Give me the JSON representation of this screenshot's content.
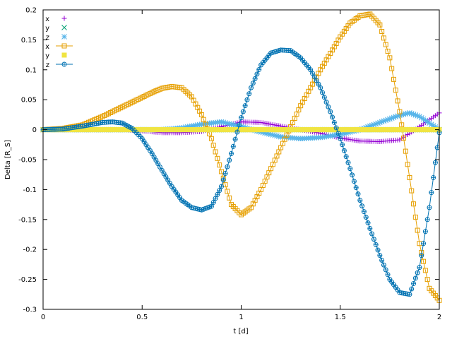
{
  "chart_data": {
    "type": "line",
    "xlabel": "t [d]",
    "ylabel": "Delta [R_S]",
    "xlim": [
      0,
      2
    ],
    "ylim": [
      -0.3,
      0.2
    ],
    "xticks": [
      "0",
      "0.5",
      "1",
      "1.5",
      "2"
    ],
    "yticks": [
      "0.2",
      "0.15",
      "0.1",
      "0.05",
      "0",
      "-0.05",
      "-0.1",
      "-0.15",
      "-0.2",
      "-0.25",
      "-0.3"
    ],
    "grid": false,
    "legend": "top-left",
    "series": [
      {
        "name": "x",
        "color": "#9400d3",
        "marker": "plus",
        "lines": false,
        "x": [
          0,
          0.1,
          0.2,
          0.3,
          0.4,
          0.5,
          0.6,
          0.7,
          0.8,
          0.9,
          1.0,
          1.1,
          1.2,
          1.3,
          1.4,
          1.5,
          1.6,
          1.7,
          1.8,
          1.9,
          2.0
        ],
        "y": [
          0,
          0,
          0,
          0,
          0,
          -0.002,
          -0.005,
          -0.005,
          -0.003,
          0.005,
          0.013,
          0.012,
          0.006,
          0,
          -0.006,
          -0.014,
          -0.019,
          -0.02,
          -0.017,
          0.005,
          0.028
        ]
      },
      {
        "name": "y",
        "color": "#009e73",
        "marker": "cross",
        "lines": false,
        "x": [
          0,
          0.5,
          1.0,
          1.5,
          2.0
        ],
        "y": [
          0,
          0,
          0,
          0,
          0
        ]
      },
      {
        "name": "z",
        "color": "#56b4e9",
        "marker": "star",
        "lines": false,
        "x": [
          0,
          0.1,
          0.2,
          0.3,
          0.4,
          0.5,
          0.6,
          0.7,
          0.8,
          0.9,
          1.0,
          1.1,
          1.2,
          1.3,
          1.4,
          1.5,
          1.6,
          1.7,
          1.8,
          1.85,
          1.9,
          2.0
        ],
        "y": [
          0,
          0,
          0,
          0,
          0,
          0,
          0,
          0.003,
          0.009,
          0.013,
          0.005,
          -0.004,
          -0.012,
          -0.015,
          -0.013,
          -0.008,
          0,
          0.012,
          0.024,
          0.028,
          0.022,
          0
        ]
      },
      {
        "name": "x",
        "color": "#e69f00",
        "marker": "box",
        "lines": true,
        "x": [
          0,
          0.1,
          0.2,
          0.3,
          0.4,
          0.5,
          0.55,
          0.6,
          0.65,
          0.7,
          0.75,
          0.8,
          0.85,
          0.9,
          0.95,
          1.0,
          1.05,
          1.1,
          1.15,
          1.2,
          1.3,
          1.4,
          1.5,
          1.55,
          1.6,
          1.65,
          1.7,
          1.75,
          1.8,
          1.85,
          1.9,
          1.95,
          2.0
        ],
        "y": [
          0,
          0.002,
          0.008,
          0.022,
          0.038,
          0.054,
          0.062,
          0.069,
          0.072,
          0.07,
          0.055,
          0.025,
          -0.015,
          -0.07,
          -0.125,
          -0.142,
          -0.13,
          -0.1,
          -0.065,
          -0.03,
          0.04,
          0.1,
          0.155,
          0.178,
          0.19,
          0.193,
          0.175,
          0.12,
          0.03,
          -0.08,
          -0.19,
          -0.265,
          -0.285
        ]
      },
      {
        "name": "y",
        "color": "#f0e442",
        "marker": "boxfilled",
        "lines": false,
        "x": [
          0,
          0.1,
          0.2,
          0.3,
          0.4,
          0.5,
          0.6,
          0.7,
          0.8,
          0.9,
          1.0,
          1.1,
          1.2,
          1.3,
          1.4,
          1.5,
          1.6,
          1.7,
          1.8,
          1.9,
          2.0
        ],
        "y": [
          0,
          0,
          0,
          0,
          0,
          0,
          0,
          0,
          0,
          0,
          0,
          0,
          0,
          0,
          0,
          0,
          0,
          0,
          0,
          0,
          0
        ]
      },
      {
        "name": "z",
        "color": "#0072b2",
        "marker": "circleplus",
        "lines": true,
        "x": [
          0,
          0.1,
          0.2,
          0.3,
          0.35,
          0.4,
          0.45,
          0.5,
          0.55,
          0.6,
          0.65,
          0.7,
          0.75,
          0.8,
          0.85,
          0.9,
          0.95,
          1.0,
          1.05,
          1.1,
          1.15,
          1.2,
          1.25,
          1.3,
          1.35,
          1.4,
          1.45,
          1.5,
          1.55,
          1.6,
          1.65,
          1.7,
          1.75,
          1.8,
          1.85,
          1.9,
          1.95,
          2.0
        ],
        "y": [
          0,
          0.001,
          0.006,
          0.012,
          0.013,
          0.011,
          0.002,
          -0.015,
          -0.04,
          -0.068,
          -0.095,
          -0.118,
          -0.13,
          -0.134,
          -0.128,
          -0.095,
          -0.04,
          0.02,
          0.07,
          0.108,
          0.128,
          0.133,
          0.132,
          0.12,
          0.1,
          0.07,
          0.03,
          -0.015,
          -0.065,
          -0.118,
          -0.165,
          -0.21,
          -0.25,
          -0.272,
          -0.275,
          -0.23,
          -0.13,
          -0.005
        ]
      }
    ]
  }
}
